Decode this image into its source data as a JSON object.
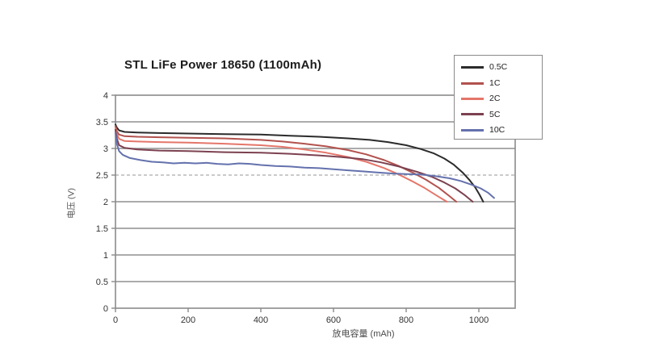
{
  "title": "STL LiFe Power 18650 (1100mAh)",
  "chart_data": {
    "type": "line",
    "title": "STL LiFe Power 18650 (1100mAh)",
    "xlabel": "放电容量 (mAh)",
    "ylabel": "电压 (V)",
    "xlim": [
      0,
      1100
    ],
    "ylim": [
      0,
      4
    ],
    "x_ticks": [
      0,
      200,
      400,
      600,
      800,
      1000
    ],
    "y_ticks": [
      0,
      0.5,
      1,
      1.5,
      2,
      2.5,
      3,
      3.5,
      4
    ],
    "grid": "horizontal",
    "dashed_gridline_y": 2.5,
    "legend_position": "top-right",
    "colors": {
      "frame": "#8a8a8a",
      "grid": "#8f8f8f",
      "grid_dashed": "#ababab",
      "text": "#333333",
      "title": "#1c1c1c"
    },
    "series": [
      {
        "name": "0.5C",
        "color": "#2b2b2b",
        "points": [
          [
            0,
            3.45
          ],
          [
            4,
            3.39
          ],
          [
            10,
            3.34
          ],
          [
            25,
            3.31
          ],
          [
            60,
            3.3
          ],
          [
            120,
            3.29
          ],
          [
            200,
            3.28
          ],
          [
            300,
            3.27
          ],
          [
            400,
            3.26
          ],
          [
            480,
            3.24
          ],
          [
            560,
            3.22
          ],
          [
            640,
            3.19
          ],
          [
            700,
            3.16
          ],
          [
            750,
            3.12
          ],
          [
            800,
            3.06
          ],
          [
            840,
            2.99
          ],
          [
            875,
            2.91
          ],
          [
            905,
            2.81
          ],
          [
            930,
            2.7
          ],
          [
            955,
            2.55
          ],
          [
            975,
            2.4
          ],
          [
            990,
            2.27
          ],
          [
            1002,
            2.13
          ],
          [
            1012,
            2.0
          ]
        ]
      },
      {
        "name": "1C",
        "color": "#b2524e",
        "points": [
          [
            0,
            3.42
          ],
          [
            4,
            3.32
          ],
          [
            10,
            3.26
          ],
          [
            25,
            3.23
          ],
          [
            60,
            3.22
          ],
          [
            120,
            3.21
          ],
          [
            200,
            3.2
          ],
          [
            300,
            3.19
          ],
          [
            400,
            3.16
          ],
          [
            460,
            3.13
          ],
          [
            520,
            3.09
          ],
          [
            580,
            3.04
          ],
          [
            640,
            2.97
          ],
          [
            690,
            2.89
          ],
          [
            740,
            2.78
          ],
          [
            780,
            2.67
          ],
          [
            820,
            2.54
          ],
          [
            855,
            2.41
          ],
          [
            890,
            2.26
          ],
          [
            920,
            2.1
          ],
          [
            938,
            2.0
          ]
        ]
      },
      {
        "name": "2C",
        "color": "#e4766a",
        "points": [
          [
            0,
            3.38
          ],
          [
            4,
            3.27
          ],
          [
            10,
            3.18
          ],
          [
            25,
            3.14
          ],
          [
            60,
            3.13
          ],
          [
            120,
            3.12
          ],
          [
            200,
            3.11
          ],
          [
            300,
            3.09
          ],
          [
            400,
            3.06
          ],
          [
            460,
            3.03
          ],
          [
            520,
            2.98
          ],
          [
            580,
            2.92
          ],
          [
            640,
            2.84
          ],
          [
            690,
            2.75
          ],
          [
            740,
            2.63
          ],
          [
            780,
            2.51
          ],
          [
            815,
            2.39
          ],
          [
            850,
            2.26
          ],
          [
            885,
            2.11
          ],
          [
            912,
            2.0
          ]
        ]
      },
      {
        "name": "5C",
        "color": "#7c4150",
        "points": [
          [
            0,
            3.35
          ],
          [
            4,
            3.18
          ],
          [
            10,
            3.06
          ],
          [
            25,
            3.01
          ],
          [
            60,
            2.98
          ],
          [
            120,
            2.96
          ],
          [
            200,
            2.95
          ],
          [
            300,
            2.93
          ],
          [
            400,
            2.92
          ],
          [
            480,
            2.9
          ],
          [
            560,
            2.87
          ],
          [
            620,
            2.84
          ],
          [
            680,
            2.8
          ],
          [
            730,
            2.74
          ],
          [
            780,
            2.66
          ],
          [
            830,
            2.56
          ],
          [
            870,
            2.47
          ],
          [
            905,
            2.36
          ],
          [
            935,
            2.25
          ],
          [
            960,
            2.13
          ],
          [
            983,
            2.0
          ]
        ]
      },
      {
        "name": "10C",
        "color": "#6471ad",
        "points": [
          [
            0,
            3.3
          ],
          [
            4,
            3.08
          ],
          [
            10,
            2.95
          ],
          [
            20,
            2.88
          ],
          [
            40,
            2.82
          ],
          [
            70,
            2.78
          ],
          [
            100,
            2.75
          ],
          [
            130,
            2.74
          ],
          [
            160,
            2.72
          ],
          [
            190,
            2.73
          ],
          [
            220,
            2.72
          ],
          [
            250,
            2.73
          ],
          [
            280,
            2.71
          ],
          [
            310,
            2.7
          ],
          [
            340,
            2.72
          ],
          [
            370,
            2.71
          ],
          [
            400,
            2.69
          ],
          [
            440,
            2.67
          ],
          [
            480,
            2.66
          ],
          [
            520,
            2.64
          ],
          [
            560,
            2.63
          ],
          [
            600,
            2.61
          ],
          [
            640,
            2.59
          ],
          [
            680,
            2.57
          ],
          [
            720,
            2.55
          ],
          [
            760,
            2.53
          ],
          [
            800,
            2.52
          ],
          [
            840,
            2.51
          ],
          [
            880,
            2.48
          ],
          [
            920,
            2.44
          ],
          [
            950,
            2.39
          ],
          [
            980,
            2.32
          ],
          [
            1005,
            2.25
          ],
          [
            1025,
            2.17
          ],
          [
            1042,
            2.07
          ]
        ]
      }
    ]
  }
}
